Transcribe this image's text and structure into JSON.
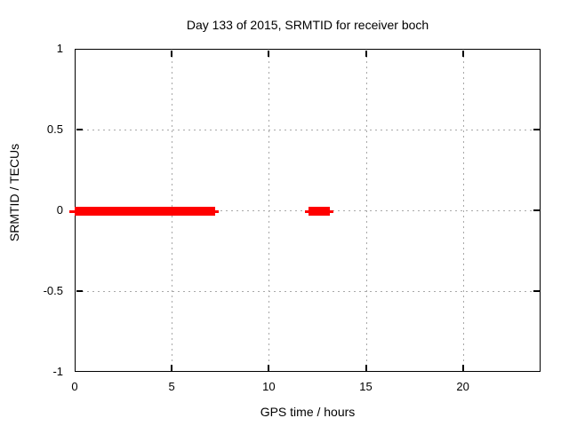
{
  "chart_data": {
    "type": "line",
    "title": "Day 133 of 2015, SRMTID for receiver boch",
    "xlabel": "GPS time / hours",
    "ylabel": "SRMTID / TECUs",
    "xlim": [
      0,
      24
    ],
    "ylim": [
      -1,
      1
    ],
    "xticks": [
      0,
      5,
      10,
      15,
      20
    ],
    "yticks": [
      -1,
      -0.5,
      0,
      0.5,
      1
    ],
    "grid_xticks": [
      5,
      10,
      15,
      20
    ],
    "grid_yticks": [
      -0.5,
      0,
      0.5
    ],
    "grid": true,
    "legend": "none",
    "tick_style": "inward, mirrored on top and right borders",
    "colors": {
      "series": "#ff0000",
      "grid": "#a8a8a8",
      "axis": "#000000",
      "background": "#ffffff"
    },
    "series": [
      {
        "name": "SRMTID",
        "color": "#ff0000",
        "style": "thick horizontal segments with thin line underlay, constant value",
        "segments": [
          {
            "x_start": 0,
            "x_end": 7.24,
            "y": 0
          },
          {
            "x_start": 12.05,
            "x_end": 13.16,
            "y": 0
          }
        ],
        "thin_line_segments": [
          {
            "x_start": -0.27,
            "x_end": 7.42,
            "y": 0
          },
          {
            "x_start": 11.87,
            "x_end": 13.35,
            "y": 0
          }
        ]
      }
    ]
  }
}
